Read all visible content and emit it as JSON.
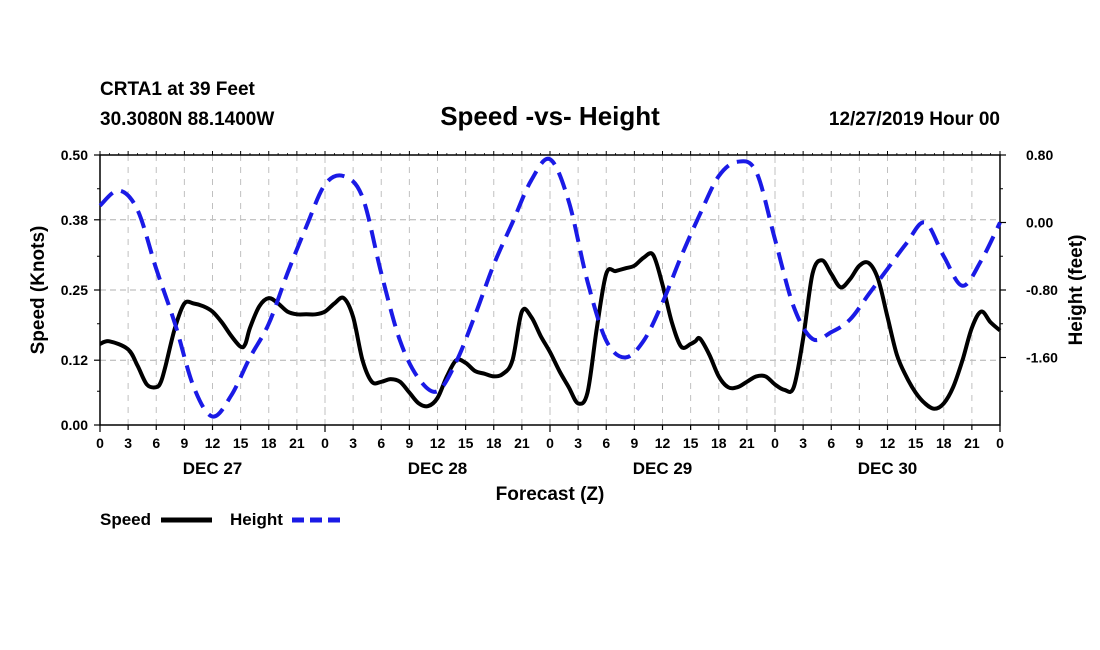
{
  "header": {
    "station": "CRTA1 at 39 Feet",
    "coords": "30.3080N 88.1400W",
    "title": "Speed -vs- Height",
    "datetime": "12/27/2019 Hour 00"
  },
  "chart_data": {
    "type": "line",
    "title": "Speed -vs- Height",
    "xlabel": "Forecast (Z)",
    "ylabel": "Speed (Knots)",
    "y2label": "Height (feet)",
    "xlim": [
      0,
      96
    ],
    "ylim": [
      0,
      0.5
    ],
    "y2lim": [
      -2.4,
      0.8
    ],
    "x_tick_labels": [
      "0",
      "3",
      "6",
      "9",
      "12",
      "15",
      "18",
      "21",
      "0",
      "3",
      "6",
      "9",
      "12",
      "15",
      "18",
      "21",
      "0",
      "3",
      "6",
      "9",
      "12",
      "15",
      "18",
      "21",
      "0",
      "3",
      "6",
      "9",
      "12",
      "15",
      "18",
      "21",
      "0"
    ],
    "y_tick_labels": [
      "0.00",
      "0.12",
      "0.25",
      "0.38",
      "0.50"
    ],
    "y2_tick_labels": [
      "-1.60",
      "-0.80",
      "0.00",
      "0.80"
    ],
    "day_labels": [
      "DEC 27",
      "DEC 28",
      "DEC 29",
      "DEC 30"
    ],
    "legend": {
      "speed": "Speed",
      "height": "Height"
    },
    "series": [
      {
        "name": "Speed",
        "axis": "left",
        "color": "#000000",
        "style": "solid",
        "x": [
          0,
          1,
          3,
          4,
          5,
          6,
          6.5,
          7,
          8,
          9,
          10,
          11,
          12,
          13,
          14,
          15,
          15.5,
          16,
          17,
          18,
          19,
          20,
          21,
          22,
          23,
          24,
          25,
          26,
          27,
          28,
          29,
          30,
          31,
          32,
          33,
          34,
          35,
          36,
          37,
          38,
          39,
          40,
          41,
          42,
          43,
          44,
          45,
          46,
          47,
          48,
          49,
          50,
          51,
          52,
          53,
          54,
          55,
          56,
          57,
          58,
          59,
          60,
          61,
          62,
          63,
          63.5,
          64,
          65,
          66,
          67,
          68,
          69,
          70,
          71,
          72,
          73,
          74,
          75,
          76,
          77,
          78,
          79,
          80,
          81,
          82,
          83,
          84,
          85,
          86,
          87,
          88,
          89,
          90,
          91,
          92,
          93,
          94,
          95,
          96
        ],
        "values": [
          0.15,
          0.155,
          0.14,
          0.11,
          0.075,
          0.07,
          0.08,
          0.11,
          0.18,
          0.225,
          0.225,
          0.22,
          0.21,
          0.19,
          0.165,
          0.145,
          0.15,
          0.18,
          0.22,
          0.235,
          0.225,
          0.21,
          0.205,
          0.205,
          0.205,
          0.21,
          0.225,
          0.235,
          0.2,
          0.12,
          0.08,
          0.08,
          0.085,
          0.08,
          0.06,
          0.04,
          0.035,
          0.05,
          0.09,
          0.12,
          0.115,
          0.1,
          0.095,
          0.09,
          0.095,
          0.12,
          0.21,
          0.2,
          0.165,
          0.135,
          0.1,
          0.07,
          0.04,
          0.06,
          0.18,
          0.28,
          0.285,
          0.29,
          0.295,
          0.31,
          0.315,
          0.26,
          0.19,
          0.145,
          0.15,
          0.155,
          0.16,
          0.13,
          0.09,
          0.07,
          0.07,
          0.08,
          0.09,
          0.09,
          0.075,
          0.065,
          0.07,
          0.16,
          0.28,
          0.305,
          0.28,
          0.255,
          0.27,
          0.295,
          0.3,
          0.27,
          0.2,
          0.13,
          0.09,
          0.06,
          0.04,
          0.03,
          0.04,
          0.07,
          0.12,
          0.18,
          0.21,
          0.19,
          0.175
        ],
        "value_axis_note": "speed in knots"
      },
      {
        "name": "Height",
        "axis": "right",
        "color": "#1a1ae6",
        "style": "dashed",
        "x": [
          0,
          2,
          4,
          6,
          8,
          10,
          12,
          14,
          16,
          18,
          20,
          22,
          24,
          26,
          28,
          30,
          32,
          34,
          36,
          38,
          40,
          42,
          44,
          46,
          48,
          50,
          52,
          54,
          56,
          58,
          60,
          62,
          64,
          66,
          68,
          70,
          72,
          74,
          76,
          78,
          80,
          82,
          84,
          86,
          88,
          90,
          92,
          94,
          96
        ],
        "values": [
          0.2,
          0.38,
          0.15,
          -0.55,
          -1.2,
          -1.95,
          -2.3,
          -2.05,
          -1.6,
          -1.2,
          -0.6,
          -0.05,
          0.45,
          0.55,
          0.3,
          -0.6,
          -1.4,
          -1.85,
          -2.0,
          -1.65,
          -1.1,
          -0.5,
          0.0,
          0.5,
          0.75,
          0.25,
          -0.7,
          -1.4,
          -1.6,
          -1.4,
          -0.95,
          -0.4,
          0.1,
          0.55,
          0.72,
          0.6,
          -0.2,
          -1.0,
          -1.38,
          -1.3,
          -1.15,
          -0.85,
          -0.55,
          -0.25,
          0.0,
          -0.4,
          -0.75,
          -0.45,
          0.0
        ]
      }
    ]
  }
}
